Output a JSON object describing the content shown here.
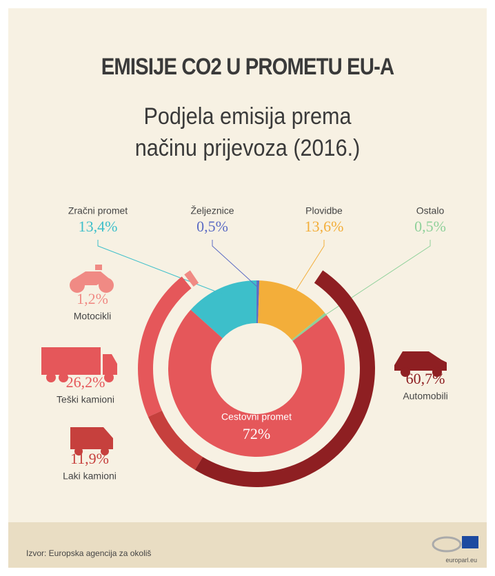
{
  "title": "EMISIJE CO2 U PROMETU EU-A",
  "subtitle": "Podjela emisija prema načinu prijevoza (2016.)",
  "source": "Izvor: Europska agencija za okoliš",
  "site": "europarl.eu",
  "chart_data": [
    {
      "type": "donut",
      "categories": [
        "Zračni promet",
        "Željeznice",
        "Plovidbe",
        "Ostalo",
        "Cestovni promet"
      ],
      "values": [
        13.4,
        0.5,
        13.6,
        0.5,
        72
      ],
      "value_labels": [
        "13,4%",
        "0,5%",
        "13,6%",
        "0,5%",
        "72%"
      ],
      "colors": [
        "#3dbfca",
        "#5b6bc4",
        "#f3ae3a",
        "#8fd19a",
        "#e5575a"
      ]
    },
    {
      "type": "ring",
      "categories": [
        "Motocikli",
        "Teški kamioni",
        "Laki kamioni",
        "Automobili"
      ],
      "values": [
        1.2,
        26.2,
        11.9,
        60.7
      ],
      "value_labels": [
        "1,2%",
        "26,2%",
        "11,9%",
        "60,7%"
      ],
      "colors": [
        "#f08a84",
        "#e5575a",
        "#c6403d",
        "#8e1f22"
      ]
    }
  ]
}
